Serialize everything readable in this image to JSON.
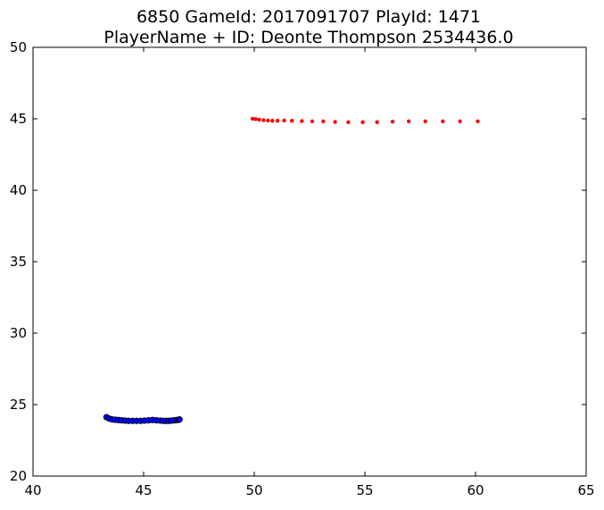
{
  "chart_data": {
    "type": "scatter",
    "title_lines": [
      "6850 GameId: 2017091707 PlayId: 1471",
      "PlayerName + ID: Deonte Thompson 2534436.0"
    ],
    "xlabel": "",
    "ylabel": "",
    "xlim": [
      40,
      65
    ],
    "ylim": [
      20,
      50
    ],
    "x_ticks": [
      "40",
      "45",
      "50",
      "55",
      "60",
      "65"
    ],
    "y_ticks": [
      "20",
      "25",
      "30",
      "35",
      "40",
      "45",
      "50"
    ],
    "grid": false,
    "legend": "none",
    "series": [
      {
        "color": "#ff0000",
        "marker": "small-dot",
        "points": [
          [
            49.92,
            45.0
          ],
          [
            50.06,
            44.98
          ],
          [
            50.22,
            44.94
          ],
          [
            50.42,
            44.9
          ],
          [
            50.62,
            44.88
          ],
          [
            50.82,
            44.86
          ],
          [
            51.05,
            44.86
          ],
          [
            51.35,
            44.88
          ],
          [
            51.7,
            44.86
          ],
          [
            52.15,
            44.84
          ],
          [
            52.62,
            44.82
          ],
          [
            53.12,
            44.82
          ],
          [
            53.65,
            44.78
          ],
          [
            54.25,
            44.76
          ],
          [
            54.9,
            44.76
          ],
          [
            55.55,
            44.76
          ],
          [
            56.25,
            44.8
          ],
          [
            56.98,
            44.82
          ],
          [
            57.73,
            44.82
          ],
          [
            58.52,
            44.82
          ],
          [
            59.3,
            44.82
          ],
          [
            60.1,
            44.82
          ]
        ]
      },
      {
        "color": "#0000ff",
        "marker": "dot-black-edge",
        "points": [
          [
            43.32,
            24.12
          ],
          [
            43.45,
            24.02
          ],
          [
            43.58,
            23.96
          ],
          [
            43.72,
            23.94
          ],
          [
            43.86,
            23.92
          ],
          [
            44.0,
            23.9
          ],
          [
            44.16,
            23.88
          ],
          [
            44.32,
            23.86
          ],
          [
            44.5,
            23.86
          ],
          [
            44.68,
            23.86
          ],
          [
            44.86,
            23.86
          ],
          [
            45.04,
            23.88
          ],
          [
            45.22,
            23.9
          ],
          [
            45.4,
            23.92
          ],
          [
            45.58,
            23.9
          ],
          [
            45.76,
            23.88
          ],
          [
            45.9,
            23.86
          ],
          [
            46.02,
            23.86
          ],
          [
            46.14,
            23.86
          ],
          [
            46.26,
            23.88
          ],
          [
            46.38,
            23.9
          ],
          [
            46.5,
            23.92
          ],
          [
            46.6,
            23.94
          ],
          [
            46.62,
            23.96
          ]
        ]
      }
    ]
  }
}
